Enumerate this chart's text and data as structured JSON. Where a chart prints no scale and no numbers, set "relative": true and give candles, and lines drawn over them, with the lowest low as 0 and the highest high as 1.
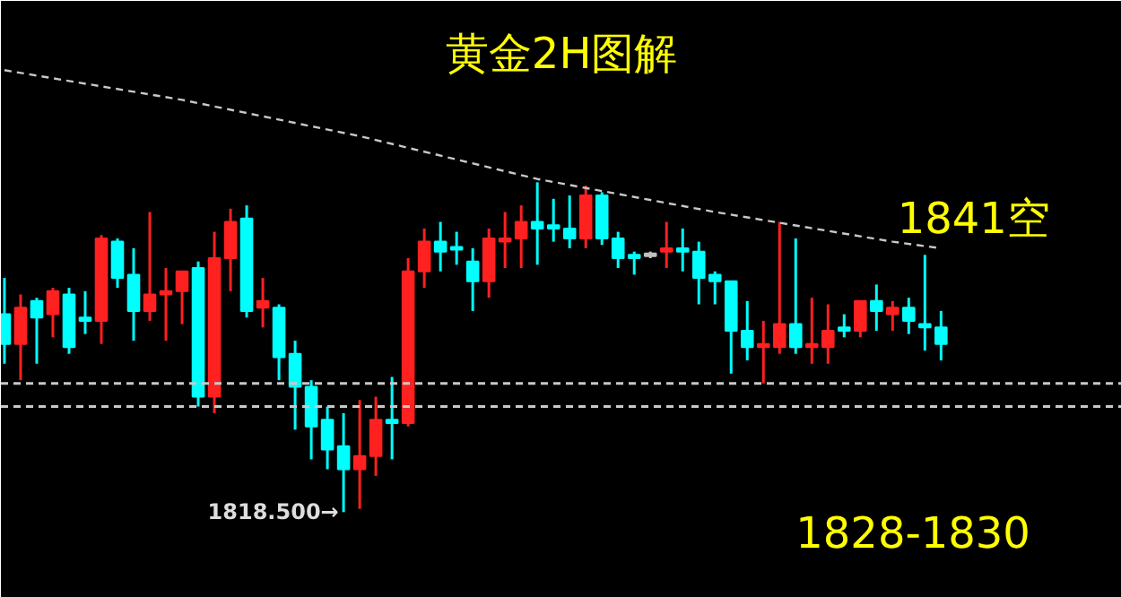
{
  "chart_data": {
    "type": "candlestick",
    "title": "黄金2H图解",
    "relative": true,
    "grid": false,
    "categories": [
      null,
      null,
      null,
      null,
      null,
      null,
      null,
      null,
      null,
      null,
      null,
      null,
      null,
      null,
      null,
      null,
      null,
      null,
      null,
      null,
      null,
      null,
      null,
      null,
      null,
      null,
      null,
      null,
      null,
      null,
      null,
      null,
      null,
      null,
      null,
      null,
      null,
      null,
      null,
      null,
      null,
      null,
      null,
      null,
      null,
      null,
      null,
      null,
      null,
      null,
      null,
      null,
      null,
      null,
      null,
      null,
      null,
      null,
      null
    ],
    "ohlc": [
      [
        0.6,
        0.71,
        0.45,
        0.51
      ],
      [
        0.51,
        0.66,
        0.4,
        0.62
      ],
      [
        0.64,
        0.65,
        0.45,
        0.59
      ],
      [
        0.6,
        0.68,
        0.53,
        0.67
      ],
      [
        0.66,
        0.68,
        0.48,
        0.5
      ],
      [
        0.59,
        0.67,
        0.54,
        0.58
      ],
      [
        0.58,
        0.84,
        0.51,
        0.83
      ],
      [
        0.82,
        0.83,
        0.68,
        0.71
      ],
      [
        0.72,
        0.8,
        0.52,
        0.61
      ],
      [
        0.61,
        0.91,
        0.58,
        0.66
      ],
      [
        0.66,
        0.74,
        0.52,
        0.67
      ],
      [
        0.67,
        0.73,
        0.57,
        0.73
      ],
      [
        0.74,
        0.76,
        0.32,
        0.35
      ],
      [
        0.35,
        0.85,
        0.3,
        0.77
      ],
      [
        0.77,
        0.92,
        0.67,
        0.88
      ],
      [
        0.89,
        0.93,
        0.59,
        0.61
      ],
      [
        0.62,
        0.71,
        0.56,
        0.64
      ],
      [
        0.62,
        0.63,
        0.4,
        0.47
      ],
      [
        0.48,
        0.52,
        0.25,
        0.38
      ],
      [
        0.38,
        0.4,
        0.16,
        0.26
      ],
      [
        0.28,
        0.32,
        0.13,
        0.19
      ],
      [
        0.2,
        0.3,
        0.0,
        0.13
      ],
      [
        0.13,
        0.34,
        0.01,
        0.17
      ],
      [
        0.17,
        0.35,
        0.11,
        0.28
      ],
      [
        0.28,
        0.41,
        0.16,
        0.27
      ],
      [
        0.27,
        0.77,
        0.26,
        0.73
      ],
      [
        0.73,
        0.86,
        0.68,
        0.82
      ],
      [
        0.82,
        0.88,
        0.73,
        0.79
      ],
      [
        0.8,
        0.85,
        0.75,
        0.8
      ],
      [
        0.76,
        0.8,
        0.61,
        0.7
      ],
      [
        0.7,
        0.86,
        0.65,
        0.83
      ],
      [
        0.82,
        0.91,
        0.74,
        0.83
      ],
      [
        0.83,
        0.93,
        0.74,
        0.88
      ],
      [
        0.88,
        1.0,
        0.75,
        0.86
      ],
      [
        0.87,
        0.95,
        0.82,
        0.86
      ],
      [
        0.86,
        0.96,
        0.8,
        0.83
      ],
      [
        0.83,
        0.99,
        0.8,
        0.96
      ],
      [
        0.96,
        0.97,
        0.81,
        0.83
      ],
      [
        0.83,
        0.85,
        0.74,
        0.77
      ],
      [
        0.78,
        0.79,
        0.72,
        0.77
      ],
      [
        0.78,
        0.79,
        0.77,
        0.78
      ],
      [
        0.79,
        0.88,
        0.74,
        0.8
      ],
      [
        0.8,
        0.86,
        0.73,
        0.79
      ],
      [
        0.79,
        0.82,
        0.63,
        0.71
      ],
      [
        0.72,
        0.73,
        0.63,
        0.7
      ],
      [
        0.7,
        0.7,
        0.42,
        0.55
      ],
      [
        0.55,
        0.64,
        0.46,
        0.5
      ],
      [
        0.5,
        0.58,
        0.39,
        0.51
      ],
      [
        0.5,
        0.88,
        0.48,
        0.57
      ],
      [
        0.57,
        0.83,
        0.48,
        0.5
      ],
      [
        0.5,
        0.65,
        0.45,
        0.51
      ],
      [
        0.5,
        0.63,
        0.45,
        0.55
      ],
      [
        0.56,
        0.6,
        0.53,
        0.55
      ],
      [
        0.55,
        0.64,
        0.53,
        0.64
      ],
      [
        0.64,
        0.69,
        0.55,
        0.61
      ],
      [
        0.6,
        0.64,
        0.55,
        0.62
      ],
      [
        0.62,
        0.65,
        0.54,
        0.58
      ],
      [
        0.57,
        0.78,
        0.49,
        0.56
      ],
      [
        0.56,
        0.61,
        0.46,
        0.51
      ]
    ],
    "colors": [
      "#00ffff",
      "#ff2020",
      "#00ffff",
      "#ff2020",
      "#00ffff",
      "#00ffff",
      "#ff2020",
      "#00ffff",
      "#00ffff",
      "#ff2020",
      "#ff2020",
      "#ff2020",
      "#00ffff",
      "#ff2020",
      "#ff2020",
      "#00ffff",
      "#ff2020",
      "#00ffff",
      "#00ffff",
      "#00ffff",
      "#00ffff",
      "#00ffff",
      "#ff2020",
      "#ff2020",
      "#00ffff",
      "#ff2020",
      "#ff2020",
      "#00ffff",
      "#00ffff",
      "#00ffff",
      "#ff2020",
      "#ff2020",
      "#ff2020",
      "#00ffff",
      "#00ffff",
      "#00ffff",
      "#ff2020",
      "#00ffff",
      "#00ffff",
      "#00ffff",
      "#c0c0c0",
      "#ff2020",
      "#00ffff",
      "#00ffff",
      "#00ffff",
      "#00ffff",
      "#00ffff",
      "#ff2020",
      "#ff2020",
      "#00ffff",
      "#ff2020",
      "#ff2020",
      "#00ffff",
      "#ff2020",
      "#00ffff",
      "#ff2020",
      "#00ffff",
      "#00ffff",
      "#00ffff"
    ],
    "series": [
      {
        "type": "line",
        "color": "#c8c8c8",
        "line_style": "dashed",
        "values": [
          1.34,
          null,
          null,
          null,
          null,
          null,
          null,
          null,
          null,
          null,
          null,
          1.25,
          null,
          null,
          null,
          null,
          null,
          null,
          null,
          null,
          null,
          null,
          1.14,
          null,
          null,
          null,
          null,
          null,
          null,
          null,
          null,
          null,
          null,
          1.01,
          null,
          null,
          null,
          null,
          null,
          null,
          null,
          null,
          null,
          null,
          0.91,
          null,
          null,
          null,
          null,
          null,
          null,
          null,
          null,
          null,
          null,
          0.82,
          null,
          null,
          0.8
        ]
      }
    ],
    "ref_lines": [
      {
        "axis": "y",
        "value": 0.39,
        "color": "#c8c8c8",
        "line_style": "dashed"
      },
      {
        "axis": "y",
        "value": 0.32,
        "color": "#c8c8c8",
        "line_style": "dashed"
      }
    ],
    "annotations": [
      "1818.500→",
      "1841空",
      "1828-1830"
    ]
  }
}
